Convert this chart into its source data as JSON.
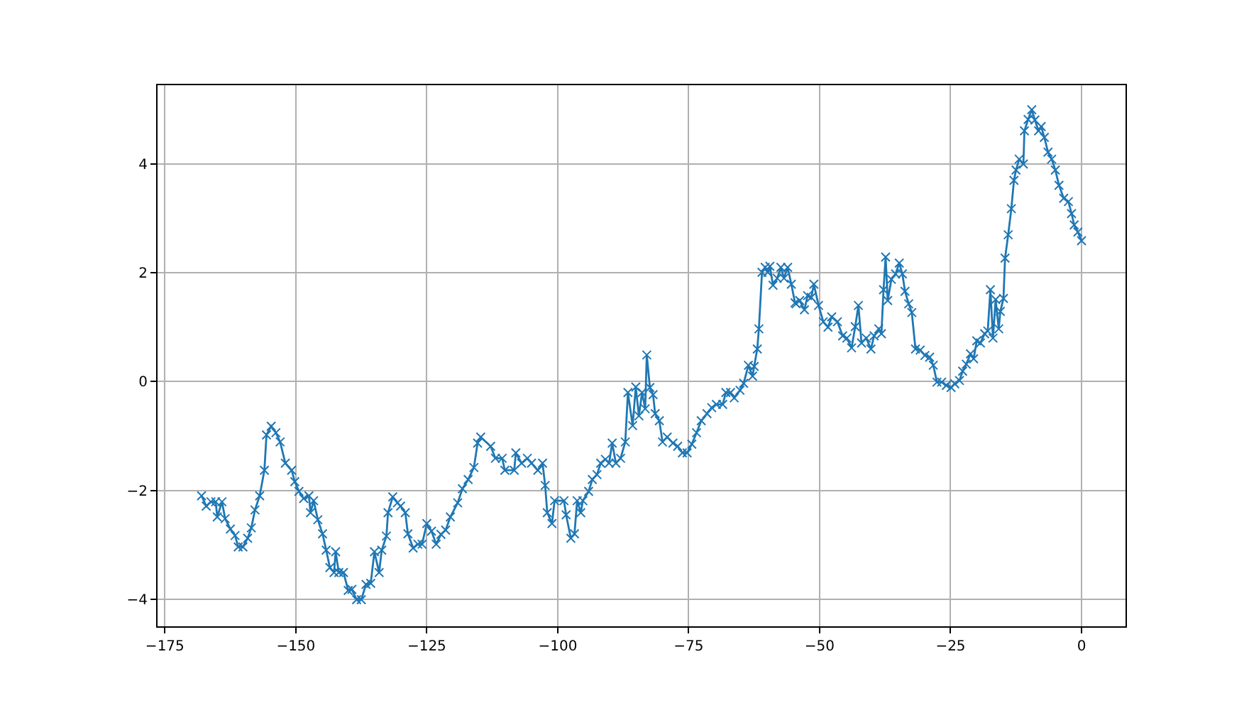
{
  "chart_data": {
    "type": "line",
    "color": "#1f77b4",
    "marker": "cross",
    "line_style": "solid",
    "grid": true,
    "legend": false,
    "xlim": [
      -176.4,
      8.4
    ],
    "xticks": [
      -175,
      -150,
      -125,
      -100,
      -75,
      -50,
      -25,
      0
    ],
    "ylim": [
      -4.5,
      5.45
    ],
    "yticks": [
      -4,
      -2,
      0,
      2,
      4
    ],
    "x": [
      -168.0,
      -167.1,
      -166.2,
      -165.3,
      -165.0,
      -164.1,
      -163.5,
      -162.5,
      -161.6,
      -161.0,
      -160.1,
      -159.2,
      -158.5,
      -157.8,
      -156.9,
      -156.0,
      -155.6,
      -154.7,
      -153.8,
      -153.0,
      -152.0,
      -150.8,
      -150.2,
      -149.4,
      -148.5,
      -147.5,
      -147.2,
      -146.6,
      -145.8,
      -144.9,
      -144.2,
      -143.5,
      -142.7,
      -142.4,
      -141.8,
      -140.9,
      -140.0,
      -139.3,
      -138.4,
      -137.5,
      -136.6,
      -135.7,
      -135.0,
      -134.1,
      -133.6,
      -132.7,
      -132.4,
      -131.5,
      -130.6,
      -130.0,
      -129.1,
      -128.6,
      -127.6,
      -126.7,
      -125.9,
      -125.0,
      -124.1,
      -123.2,
      -122.3,
      -121.4,
      -120.5,
      -119.1,
      -118.2,
      -117.1,
      -116.0,
      -115.3,
      -114.7,
      -112.8,
      -111.9,
      -110.6,
      -110.1,
      -108.3,
      -108.0,
      -106.9,
      -105.8,
      -105.0,
      -103.8,
      -102.9,
      -102.4,
      -102.0,
      -101.1,
      -100.6,
      -98.8,
      -98.4,
      -97.5,
      -96.8,
      -96.3,
      -95.6,
      -95.2,
      -94.1,
      -93.4,
      -92.5,
      -91.8,
      -90.9,
      -90.2,
      -89.6,
      -88.9,
      -88.0,
      -87.1,
      -86.6,
      -85.7,
      -85.1,
      -84.5,
      -83.9,
      -83.3,
      -83.0,
      -82.4,
      -81.8,
      -81.4,
      -80.6,
      -80.0,
      -79.1,
      -78.0,
      -77.1,
      -76.2,
      -75.3,
      -74.4,
      -73.5,
      -72.6,
      -71.5,
      -70.6,
      -69.7,
      -68.5,
      -67.9,
      -67.0,
      -66.3,
      -65.2,
      -64.5,
      -63.6,
      -62.8,
      -62.5,
      -61.9,
      -61.6,
      -61.0,
      -60.4,
      -59.9,
      -59.5,
      -58.9,
      -58.1,
      -57.4,
      -56.8,
      -56.1,
      -55.4,
      -54.7,
      -54.5,
      -53.8,
      -52.9,
      -52.3,
      -51.6,
      -51.1,
      -50.2,
      -49.3,
      -48.4,
      -47.7,
      -46.6,
      -45.6,
      -44.8,
      -43.9,
      -43.2,
      -42.6,
      -42.0,
      -41.1,
      -40.2,
      -39.6,
      -38.7,
      -38.2,
      -37.8,
      -37.4,
      -37.0,
      -36.3,
      -35.5,
      -34.8,
      -34.2,
      -33.7,
      -33.0,
      -32.4,
      -31.7,
      -30.8,
      -29.9,
      -29.0,
      -28.3,
      -27.6,
      -26.7,
      -25.8,
      -24.9,
      -24.2,
      -23.3,
      -22.7,
      -22.0,
      -21.2,
      -20.6,
      -20.0,
      -19.3,
      -18.5,
      -17.9,
      -17.4,
      -16.9,
      -16.4,
      -15.8,
      -15.5,
      -14.9,
      -14.6,
      -14.0,
      -13.4,
      -12.9,
      -12.5,
      -11.9,
      -11.1,
      -10.9,
      -10.2,
      -9.5,
      -8.9,
      -8.2,
      -7.7,
      -7.1,
      -6.4,
      -5.7,
      -5.0,
      -4.3,
      -3.4,
      -2.5,
      -1.9,
      -1.4,
      -0.7,
      0.0
    ],
    "values": [
      -2.1,
      -2.29,
      -2.21,
      -2.21,
      -2.49,
      -2.21,
      -2.52,
      -2.71,
      -2.83,
      -3.04,
      -3.04,
      -2.88,
      -2.69,
      -2.36,
      -2.1,
      -1.63,
      -0.98,
      -0.82,
      -0.94,
      -1.11,
      -1.5,
      -1.63,
      -1.84,
      -2.02,
      -2.15,
      -2.1,
      -2.41,
      -2.19,
      -2.54,
      -2.8,
      -3.1,
      -3.42,
      -3.51,
      -3.13,
      -3.51,
      -3.51,
      -3.84,
      -3.82,
      -4.01,
      -4.01,
      -3.73,
      -3.71,
      -3.13,
      -3.51,
      -3.1,
      -2.84,
      -2.41,
      -2.12,
      -2.23,
      -2.29,
      -2.41,
      -2.8,
      -3.06,
      -2.99,
      -2.99,
      -2.61,
      -2.75,
      -2.99,
      -2.81,
      -2.73,
      -2.49,
      -2.23,
      -1.97,
      -1.8,
      -1.58,
      -1.13,
      -1.02,
      -1.19,
      -1.41,
      -1.41,
      -1.63,
      -1.63,
      -1.31,
      -1.5,
      -1.41,
      -1.5,
      -1.63,
      -1.5,
      -1.91,
      -2.41,
      -2.61,
      -2.19,
      -2.19,
      -2.45,
      -2.88,
      -2.8,
      -2.19,
      -2.41,
      -2.19,
      -2.02,
      -1.8,
      -1.71,
      -1.5,
      -1.43,
      -1.5,
      -1.13,
      -1.5,
      -1.41,
      -1.11,
      -0.2,
      -0.81,
      -0.1,
      -0.63,
      -0.2,
      -0.5,
      0.49,
      -0.11,
      -0.24,
      -0.59,
      -0.72,
      -1.11,
      -1.02,
      -1.13,
      -1.19,
      -1.31,
      -1.31,
      -1.15,
      -0.94,
      -0.72,
      -0.59,
      -0.48,
      -0.42,
      -0.42,
      -0.2,
      -0.2,
      -0.3,
      -0.16,
      -0.03,
      0.3,
      0.1,
      0.28,
      0.6,
      0.97,
      2.01,
      2.1,
      2.01,
      2.12,
      1.77,
      1.9,
      2.1,
      1.9,
      2.1,
      1.79,
      1.45,
      1.43,
      1.49,
      1.32,
      1.58,
      1.55,
      1.79,
      1.4,
      1.1,
      1.0,
      1.19,
      1.1,
      0.84,
      0.8,
      0.62,
      1.01,
      1.4,
      0.71,
      0.8,
      0.6,
      0.84,
      0.97,
      0.88,
      1.69,
      2.29,
      1.49,
      1.88,
      1.98,
      2.18,
      1.98,
      1.66,
      1.43,
      1.27,
      0.6,
      0.58,
      0.48,
      0.45,
      0.3,
      -0.01,
      -0.01,
      -0.07,
      -0.11,
      -0.04,
      0.02,
      0.19,
      0.32,
      0.51,
      0.42,
      0.75,
      0.71,
      0.88,
      0.93,
      1.69,
      0.8,
      1.51,
      0.97,
      1.29,
      1.53,
      2.27,
      2.7,
      3.18,
      3.7,
      3.89,
      4.09,
      4.0,
      4.61,
      4.82,
      5.0,
      4.81,
      4.61,
      4.69,
      4.49,
      4.22,
      4.09,
      3.89,
      3.61,
      3.37,
      3.31,
      3.09,
      2.88,
      2.75,
      2.59
    ]
  }
}
